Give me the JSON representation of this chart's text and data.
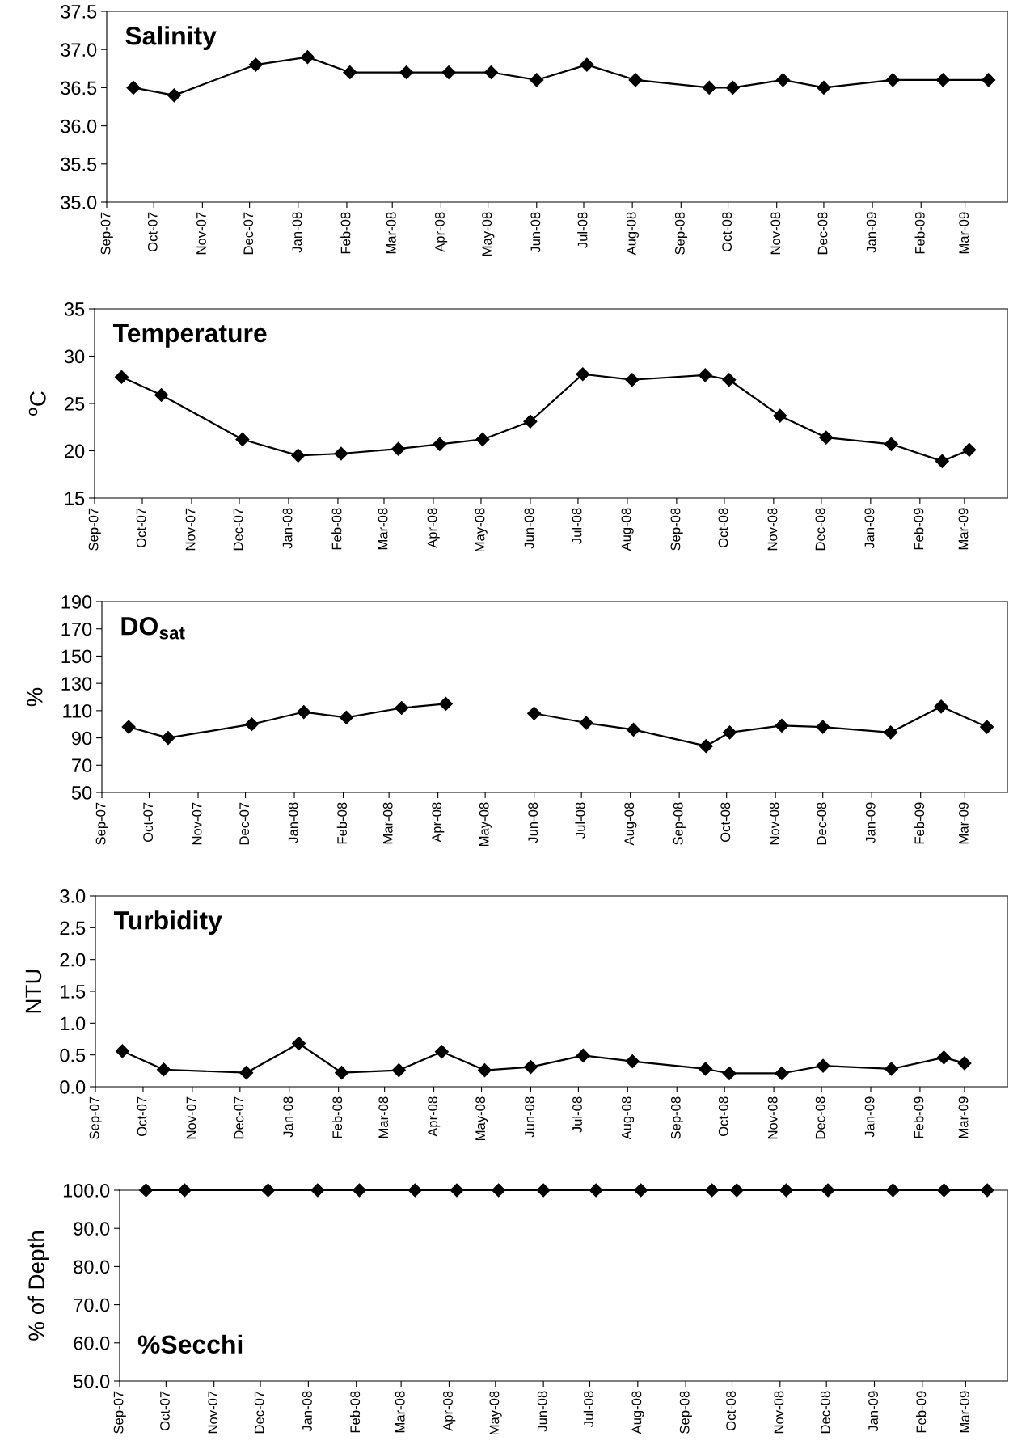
{
  "chart_data": [
    {
      "type": "line",
      "title": "Salinity",
      "marker": "diamond",
      "line_style": "solid",
      "grid": false,
      "x": [
        "2007-09-18",
        "2007-10-14",
        "2007-12-05",
        "2008-01-07",
        "2008-02-03",
        "2008-03-10",
        "2008-04-06",
        "2008-05-03",
        "2008-06-01",
        "2008-07-03",
        "2008-08-03",
        "2008-09-19",
        "2008-10-04",
        "2008-11-05",
        "2008-12-01",
        "2009-01-14",
        "2009-02-15",
        "2009-03-16"
      ],
      "series": [
        {
          "color": "#000000",
          "values": [
            36.5,
            36.4,
            36.8,
            36.9,
            36.7,
            36.7,
            36.7,
            36.7,
            36.6,
            36.8,
            36.6,
            36.5,
            36.5,
            36.6,
            36.5,
            36.6,
            36.6,
            36.6
          ]
        }
      ],
      "ylim": [
        35.0,
        37.5
      ],
      "yticks": [
        {
          "value": 35,
          "label": "35.0"
        },
        35.5,
        {
          "value": 36,
          "label": "36.0"
        },
        36.5,
        {
          "value": 37,
          "label": "37.0"
        },
        37.5
      ],
      "xlim": [
        "2007-09-01",
        "2009-03-28"
      ],
      "xticks": [
        {
          "value": "2007-09-01",
          "label": "Sep-07"
        },
        {
          "value": "2007-10-01",
          "label": "Oct-07"
        },
        {
          "value": "2007-11-01",
          "label": "Nov-07"
        },
        {
          "value": "2007-12-01",
          "label": "Dec-07"
        },
        {
          "value": "2008-01-01",
          "label": "Jan-08"
        },
        {
          "value": "2008-02-01",
          "label": "Feb-08"
        },
        {
          "value": "2008-03-01",
          "label": "Mar-08"
        },
        {
          "value": "2008-04-01",
          "label": "Apr-08"
        },
        {
          "value": "2008-05-01",
          "label": "May-08"
        },
        {
          "value": "2008-06-01",
          "label": "Jun-08"
        },
        {
          "value": "2008-07-01",
          "label": "Jul-08"
        },
        {
          "value": "2008-08-01",
          "label": "Aug-08"
        },
        {
          "value": "2008-09-01",
          "label": "Sep-08"
        },
        {
          "value": "2008-10-01",
          "label": "Oct-08"
        },
        {
          "value": "2008-11-01",
          "label": "Nov-08"
        },
        {
          "value": "2008-12-01",
          "label": "Dec-08"
        },
        {
          "value": "2009-01-01",
          "label": "Jan-09"
        },
        {
          "value": "2009-02-01",
          "label": "Feb-09"
        },
        {
          "value": "2009-03-01",
          "label": "Mar-09"
        }
      ]
    },
    {
      "type": "line",
      "title": "Temperature",
      "ylabel": "$^{o}$C",
      "marker": "diamond",
      "line_style": "solid",
      "grid": false,
      "x": [
        "2007-09-18",
        "2007-10-13",
        "2007-12-03",
        "2008-01-07",
        "2008-02-03",
        "2008-03-10",
        "2008-04-05",
        "2008-05-02",
        "2008-06-01",
        "2008-07-04",
        "2008-08-04",
        "2008-09-19",
        "2008-10-04",
        "2008-11-05",
        "2008-12-04",
        "2009-01-14",
        "2009-02-15",
        "2009-03-04"
      ],
      "series": [
        {
          "color": "#000000",
          "values": [
            27.8,
            25.9,
            21.2,
            19.5,
            19.7,
            20.2,
            20.7,
            21.2,
            23.1,
            28.1,
            27.5,
            28.0,
            27.5,
            23.7,
            21.4,
            20.7,
            18.9,
            20.1
          ]
        }
      ],
      "ylim": [
        15,
        35
      ],
      "yticks": [
        15,
        20,
        25,
        30,
        35
      ],
      "xlim": [
        "2007-09-01",
        "2009-03-28"
      ],
      "xticks": [
        {
          "value": "2007-09-01",
          "label": "Sep-07"
        },
        {
          "value": "2007-10-01",
          "label": "Oct-07"
        },
        {
          "value": "2007-11-01",
          "label": "Nov-07"
        },
        {
          "value": "2007-12-01",
          "label": "Dec-07"
        },
        {
          "value": "2008-01-01",
          "label": "Jan-08"
        },
        {
          "value": "2008-02-01",
          "label": "Feb-08"
        },
        {
          "value": "2008-03-01",
          "label": "Mar-08"
        },
        {
          "value": "2008-04-01",
          "label": "Apr-08"
        },
        {
          "value": "2008-05-01",
          "label": "May-08"
        },
        {
          "value": "2008-06-01",
          "label": "Jun-08"
        },
        {
          "value": "2008-07-01",
          "label": "Jul-08"
        },
        {
          "value": "2008-08-01",
          "label": "Aug-08"
        },
        {
          "value": "2008-09-01",
          "label": "Sep-08"
        },
        {
          "value": "2008-10-01",
          "label": "Oct-08"
        },
        {
          "value": "2008-11-01",
          "label": "Nov-08"
        },
        {
          "value": "2008-12-01",
          "label": "Dec-08"
        },
        {
          "value": "2009-01-01",
          "label": "Jan-09"
        },
        {
          "value": "2009-02-01",
          "label": "Feb-09"
        },
        {
          "value": "2009-03-01",
          "label": "Mar-09"
        }
      ]
    },
    {
      "type": "line",
      "title": "DO$_{sat}$",
      "ylabel": "%",
      "marker": "diamond",
      "line_style": "solid",
      "grid": false,
      "x": [
        "2007-09-18",
        "2007-10-13",
        "2007-12-05",
        "2008-01-07",
        "2008-02-03",
        "2008-03-09",
        "2008-04-06",
        "2008-05-01",
        "2008-06-01",
        "2008-07-04",
        "2008-08-03",
        "2008-09-18",
        "2008-10-03",
        "2008-11-05",
        "2008-12-01",
        "2009-01-13",
        "2009-02-14",
        "2009-03-15"
      ],
      "series": [
        {
          "color": "#000000",
          "values": [
            98,
            90,
            100,
            109,
            105,
            112,
            115,
            null,
            108,
            101,
            96,
            84,
            94,
            99,
            98,
            94,
            113,
            98
          ]
        }
      ],
      "ylim": [
        50,
        190
      ],
      "yticks": [
        50,
        70,
        90,
        110,
        130,
        150,
        170,
        190
      ],
      "xlim": [
        "2007-09-01",
        "2009-03-28"
      ],
      "xticks": [
        {
          "value": "2007-09-01",
          "label": "Sep-07"
        },
        {
          "value": "2007-10-01",
          "label": "Oct-07"
        },
        {
          "value": "2007-11-01",
          "label": "Nov-07"
        },
        {
          "value": "2007-12-01",
          "label": "Dec-07"
        },
        {
          "value": "2008-01-01",
          "label": "Jan-08"
        },
        {
          "value": "2008-02-01",
          "label": "Feb-08"
        },
        {
          "value": "2008-03-01",
          "label": "Mar-08"
        },
        {
          "value": "2008-04-01",
          "label": "Apr-08"
        },
        {
          "value": "2008-05-01",
          "label": "May-08"
        },
        {
          "value": "2008-06-01",
          "label": "Jun-08"
        },
        {
          "value": "2008-07-01",
          "label": "Jul-08"
        },
        {
          "value": "2008-08-01",
          "label": "Aug-08"
        },
        {
          "value": "2008-09-01",
          "label": "Sep-08"
        },
        {
          "value": "2008-10-01",
          "label": "Oct-08"
        },
        {
          "value": "2008-11-01",
          "label": "Nov-08"
        },
        {
          "value": "2008-12-01",
          "label": "Dec-08"
        },
        {
          "value": "2009-01-01",
          "label": "Jan-09"
        },
        {
          "value": "2009-02-01",
          "label": "Feb-09"
        },
        {
          "value": "2009-03-01",
          "label": "Mar-09"
        }
      ]
    },
    {
      "type": "line",
      "title": "Turbidity",
      "ylabel": "NTU",
      "marker": "diamond",
      "line_style": "solid",
      "grid": false,
      "x": [
        "2007-09-18",
        "2007-10-14",
        "2007-12-05",
        "2008-01-07",
        "2008-02-03",
        "2008-03-10",
        "2008-04-06",
        "2008-05-03",
        "2008-06-01",
        "2008-07-04",
        "2008-08-04",
        "2008-09-19",
        "2008-10-04",
        "2008-11-06",
        "2008-12-02",
        "2009-01-14",
        "2009-02-16",
        "2009-03-01"
      ],
      "series": [
        {
          "color": "#000000",
          "values": [
            0.56,
            0.27,
            0.22,
            0.68,
            0.22,
            0.26,
            0.55,
            0.26,
            0.31,
            0.49,
            0.4,
            0.28,
            0.21,
            0.21,
            0.33,
            0.28,
            0.46,
            0.37
          ]
        }
      ],
      "ylim": [
        0.0,
        3.0
      ],
      "yticks": [
        {
          "value": 0,
          "label": "0.0"
        },
        0.5,
        {
          "value": 1,
          "label": "1.0"
        },
        1.5,
        {
          "value": 2,
          "label": "2.0"
        },
        2.5,
        {
          "value": 3,
          "label": "3.0"
        }
      ],
      "xlim": [
        "2007-09-01",
        "2009-03-28"
      ],
      "xticks": [
        {
          "value": "2007-09-01",
          "label": "Sep-07"
        },
        {
          "value": "2007-10-01",
          "label": "Oct-07"
        },
        {
          "value": "2007-11-01",
          "label": "Nov-07"
        },
        {
          "value": "2007-12-01",
          "label": "Dec-07"
        },
        {
          "value": "2008-01-01",
          "label": "Jan-08"
        },
        {
          "value": "2008-02-01",
          "label": "Feb-08"
        },
        {
          "value": "2008-03-01",
          "label": "Mar-08"
        },
        {
          "value": "2008-04-01",
          "label": "Apr-08"
        },
        {
          "value": "2008-05-01",
          "label": "May-08"
        },
        {
          "value": "2008-06-01",
          "label": "Jun-08"
        },
        {
          "value": "2008-07-01",
          "label": "Jul-08"
        },
        {
          "value": "2008-08-01",
          "label": "Aug-08"
        },
        {
          "value": "2008-09-01",
          "label": "Sep-08"
        },
        {
          "value": "2008-10-01",
          "label": "Oct-08"
        },
        {
          "value": "2008-11-01",
          "label": "Nov-08"
        },
        {
          "value": "2008-12-01",
          "label": "Dec-08"
        },
        {
          "value": "2009-01-01",
          "label": "Jan-09"
        },
        {
          "value": "2009-02-01",
          "label": "Feb-09"
        },
        {
          "value": "2009-03-01",
          "label": "Mar-09"
        }
      ]
    },
    {
      "type": "line",
      "title": "%Secchi",
      "ylabel": "% of Depth",
      "marker": "diamond",
      "line_style": "solid",
      "grid": false,
      "x": [
        "2007-09-18",
        "2007-10-13",
        "2007-12-06",
        "2008-01-07",
        "2008-02-03",
        "2008-03-10",
        "2008-04-06",
        "2008-05-03",
        "2008-06-01",
        "2008-07-05",
        "2008-08-03",
        "2008-09-18",
        "2008-10-04",
        "2008-11-05",
        "2008-12-02",
        "2009-01-13",
        "2009-02-15",
        "2009-03-15"
      ],
      "series": [
        {
          "color": "#000000",
          "values": [
            100.0,
            100.0,
            100.0,
            100.0,
            100.0,
            100.0,
            100.0,
            100.0,
            100.0,
            100.0,
            100.0,
            100.0,
            100.0,
            100.0,
            100.0,
            100.0,
            100.0,
            100.0
          ]
        }
      ],
      "ylim": [
        50.0,
        100.0
      ],
      "yticks": [
        {
          "value": 50,
          "label": "50.0"
        },
        {
          "value": 60,
          "label": "60.0"
        },
        {
          "value": 70,
          "label": "70.0"
        },
        {
          "value": 80,
          "label": "80.0"
        },
        {
          "value": 90,
          "label": "90.0"
        },
        {
          "value": 100,
          "label": "100.0"
        }
      ],
      "xlim": [
        "2007-09-01",
        "2009-03-28"
      ],
      "xticks": [
        {
          "value": "2007-09-01",
          "label": "Sep-07"
        },
        {
          "value": "2007-10-01",
          "label": "Oct-07"
        },
        {
          "value": "2007-11-01",
          "label": "Nov-07"
        },
        {
          "value": "2007-12-01",
          "label": "Dec-07"
        },
        {
          "value": "2008-01-01",
          "label": "Jan-08"
        },
        {
          "value": "2008-02-01",
          "label": "Feb-08"
        },
        {
          "value": "2008-03-01",
          "label": "Mar-08"
        },
        {
          "value": "2008-04-01",
          "label": "Apr-08"
        },
        {
          "value": "2008-05-01",
          "label": "May-08"
        },
        {
          "value": "2008-06-01",
          "label": "Jun-08"
        },
        {
          "value": "2008-07-01",
          "label": "Jul-08"
        },
        {
          "value": "2008-08-01",
          "label": "Aug-08"
        },
        {
          "value": "2008-09-01",
          "label": "Sep-08"
        },
        {
          "value": "2008-10-01",
          "label": "Oct-08"
        },
        {
          "value": "2008-11-01",
          "label": "Nov-08"
        },
        {
          "value": "2008-12-01",
          "label": "Dec-08"
        },
        {
          "value": "2009-01-01",
          "label": "Jan-09"
        },
        {
          "value": "2009-02-01",
          "label": "Feb-09"
        },
        {
          "value": "2009-03-01",
          "label": "Mar-09"
        }
      ]
    }
  ]
}
